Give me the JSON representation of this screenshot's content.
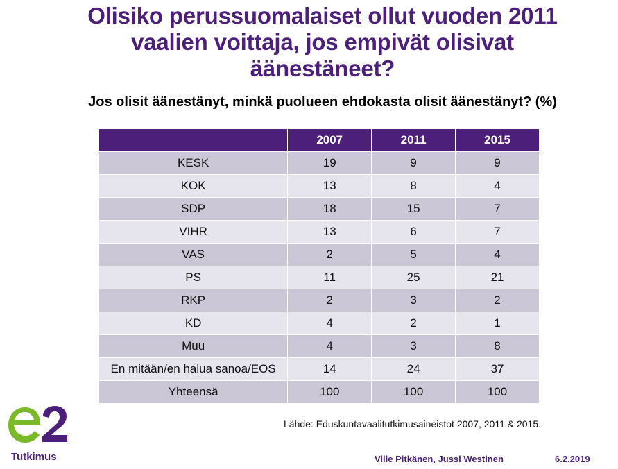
{
  "title": {
    "line1": "Olisiko perussuomalaiset ollut vuoden 2011",
    "line2": "vaalien voittaja, jos empivät olisivat",
    "line3": "äänestäneet?"
  },
  "subtitle": "Jos olisit äänestänyt, minkä puolueen ehdokasta olisit äänestänyt? (%)",
  "table": {
    "headers": [
      "",
      "2007",
      "2011",
      "2015"
    ],
    "rows": [
      [
        "KESK",
        "19",
        "9",
        "9"
      ],
      [
        "KOK",
        "13",
        "8",
        "4"
      ],
      [
        "SDP",
        "18",
        "15",
        "7"
      ],
      [
        "VIHR",
        "13",
        "6",
        "7"
      ],
      [
        "VAS",
        "2",
        "5",
        "4"
      ],
      [
        "PS",
        "11",
        "25",
        "21"
      ],
      [
        "RKP",
        "2",
        "3",
        "2"
      ],
      [
        "KD",
        "4",
        "2",
        "1"
      ],
      [
        "Muu",
        "4",
        "3",
        "8"
      ],
      [
        "En mitään/en halua sanoa/EOS",
        "14",
        "24",
        "37"
      ],
      [
        "Yhteensä",
        "100",
        "100",
        "100"
      ]
    ]
  },
  "source": "Lähde: Eduskuntavaalitutkimusaineistot 2007, 2011 & 2015.",
  "logo": {
    "mark": "e2",
    "text": "Tutkimus",
    "colors": {
      "green": "#7ab929",
      "purple": "#4b1f7a"
    }
  },
  "footer": {
    "authors": "Ville Pitkänen, Jussi Westinen",
    "date": "6.2.2019"
  },
  "colors": {
    "header_bg": "#4b1f7a",
    "row_dark": "#cbc7d6",
    "row_light": "#e6e4ec"
  }
}
